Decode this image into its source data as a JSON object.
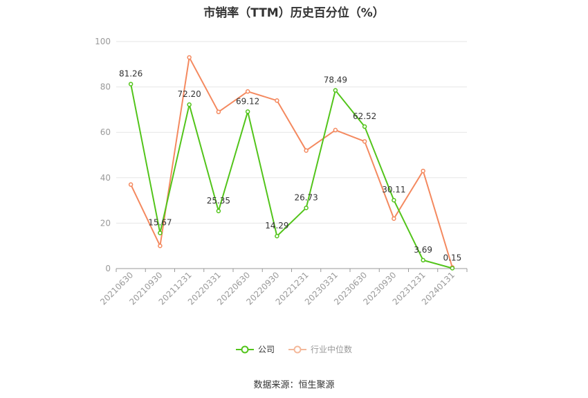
{
  "chart_data": {
    "type": "line",
    "title": "市销率（TTM）历史百分位（%）",
    "categories": [
      "20210630",
      "20210930",
      "20211231",
      "20220331",
      "20220630",
      "20220930",
      "20221231",
      "20230331",
      "20230630",
      "20230930",
      "20231231",
      "20240131"
    ],
    "series": [
      {
        "name": "公司",
        "color": "#52c41a",
        "values": [
          81.26,
          15.67,
          72.2,
          25.35,
          69.12,
          14.29,
          26.73,
          78.49,
          62.52,
          30.11,
          3.69,
          0.15
        ],
        "labels": [
          "81.26",
          "15.67",
          "72.20",
          "25.35",
          "69.12",
          "14.29",
          "26.73",
          "78.49",
          "62.52",
          "30.11",
          "3.69",
          "0.15"
        ]
      },
      {
        "name": "行业中位数",
        "color": "#f4895f",
        "values": [
          37,
          10,
          93,
          69,
          78,
          74,
          52,
          61,
          56,
          22,
          43,
          0.5
        ]
      }
    ],
    "ylim": [
      0,
      100
    ],
    "yticks": [
      "0",
      "20",
      "40",
      "60",
      "80",
      "100"
    ],
    "grid": true,
    "legend_position": "bottom"
  },
  "source": "数据来源：恒生聚源"
}
